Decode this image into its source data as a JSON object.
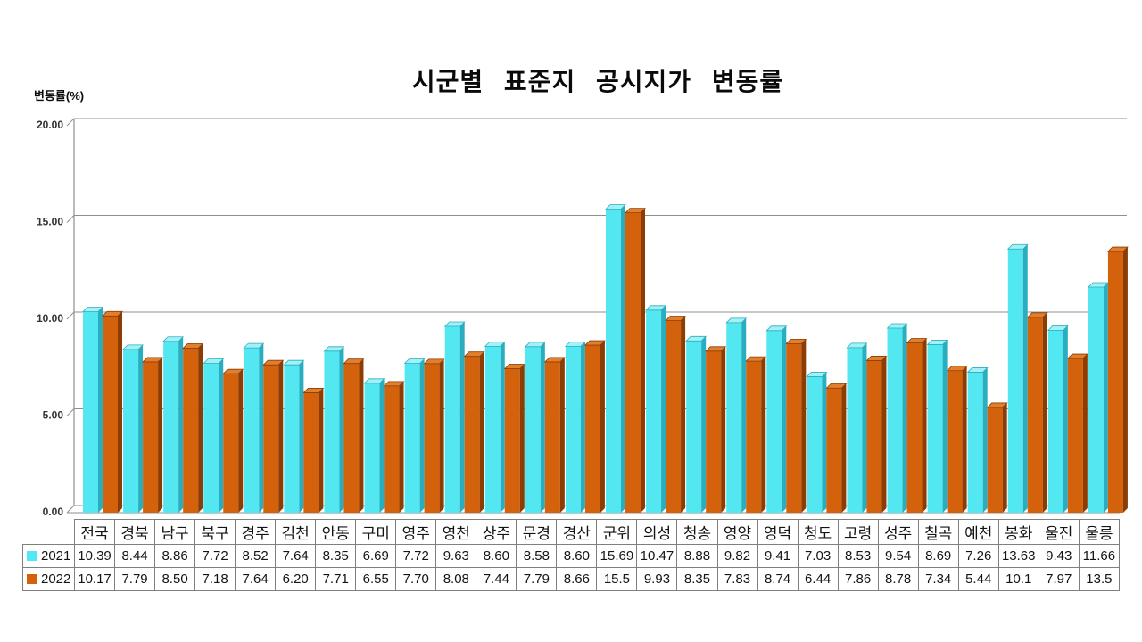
{
  "colors": {
    "series_2021": {
      "front": "#53E7F1",
      "side": "#2AAEBF",
      "top": "#A3F1F6"
    },
    "series_2022": {
      "front": "#D4620C",
      "side": "#8C3D04",
      "top": "#E0802E"
    },
    "gridline": "#8F8F8F",
    "axis": "#8F8F8F",
    "table_border": "#7F7F7F",
    "text": "#111111"
  },
  "chart_data": {
    "type": "bar",
    "title": "시군별 표준지 공시지가 변동률",
    "ylabel": "변동률(%)",
    "xlabel": "",
    "ylim": [
      0,
      20
    ],
    "y_tick_labels": [
      "20.00",
      "15.00",
      "10.00",
      "5.00",
      "0.00"
    ],
    "grid": true,
    "legend_position": "table-left",
    "categories": [
      "전국",
      "경북",
      "남구",
      "북구",
      "경주",
      "김천",
      "안동",
      "구미",
      "영주",
      "영천",
      "상주",
      "문경",
      "경산",
      "군위",
      "의성",
      "청송",
      "영양",
      "영덕",
      "청도",
      "고령",
      "성주",
      "칠곡",
      "예천",
      "봉화",
      "울진",
      "울릉"
    ],
    "series": [
      {
        "name": "2021",
        "values": [
          "10.39",
          "8.44",
          "8.86",
          "7.72",
          "8.52",
          "7.64",
          "8.35",
          "6.69",
          "7.72",
          "9.63",
          "8.60",
          "8.58",
          "8.60",
          "15.69",
          "10.47",
          "8.88",
          "9.82",
          "9.41",
          "7.03",
          "8.53",
          "9.54",
          "8.69",
          "7.26",
          "13.63",
          "9.43",
          "11.66"
        ]
      },
      {
        "name": "2022",
        "values": [
          "10.17",
          "7.79",
          "8.50",
          "7.18",
          "7.64",
          "6.20",
          "7.71",
          "6.55",
          "7.70",
          "8.08",
          "7.44",
          "7.79",
          "8.66",
          "15.5",
          "9.93",
          "8.35",
          "7.83",
          "8.74",
          "6.44",
          "7.86",
          "8.78",
          "7.34",
          "5.44",
          "10.1",
          "7.97",
          "13.5"
        ]
      }
    ]
  }
}
